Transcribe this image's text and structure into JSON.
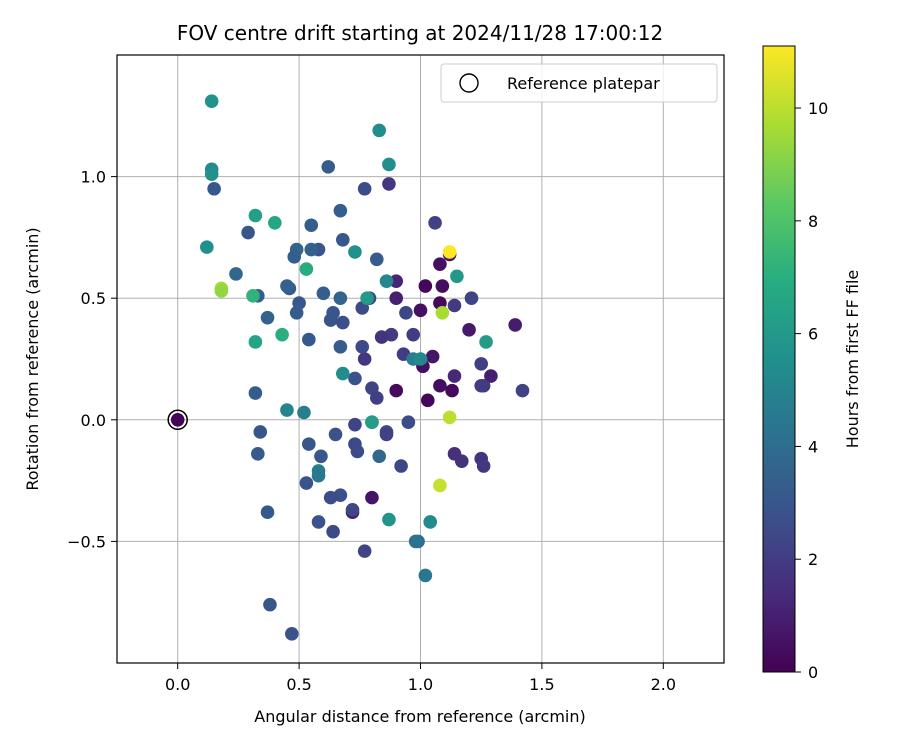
{
  "chart_data": {
    "type": "scatter",
    "title": "FOV centre drift starting at 2024/11/28 17:00:12",
    "xlabel": "Angular distance from reference (arcmin)",
    "ylabel": "Rotation from reference (arcmin)",
    "xlim": [
      -0.25,
      2.25
    ],
    "ylim": [
      -1.0,
      1.5
    ],
    "xticks": [
      0.0,
      0.5,
      1.0,
      1.5,
      2.0
    ],
    "xtick_labels": [
      "0.0",
      "0.5",
      "1.0",
      "1.5",
      "2.0"
    ],
    "yticks": [
      -0.5,
      0.0,
      0.5,
      1.0
    ],
    "ytick_labels": [
      "−0.5",
      "0.0",
      "0.5",
      "1.0"
    ],
    "grid": true,
    "legend": {
      "position": "top-right",
      "entries": [
        {
          "label": "Reference platepar",
          "marker": "open-circle"
        }
      ]
    },
    "colorbar": {
      "label": "Hours from first FF file",
      "colormap": "viridis",
      "range": [
        0,
        11.1
      ],
      "ticks": [
        0,
        2,
        4,
        6,
        8,
        10
      ],
      "tick_labels": [
        "0",
        "2",
        "4",
        "6",
        "8",
        "10"
      ]
    },
    "reference_point": {
      "x": 0.0,
      "y": 0.0
    },
    "points": [
      {
        "x": 0.0,
        "y": 0.0,
        "h": 0.1
      },
      {
        "x": 0.8,
        "y": -0.32,
        "h": 0.6
      },
      {
        "x": 0.72,
        "y": -0.38,
        "h": 0.8
      },
      {
        "x": 0.9,
        "y": 0.12,
        "h": 0.3
      },
      {
        "x": 1.01,
        "y": 0.22,
        "h": 0.5
      },
      {
        "x": 1.03,
        "y": 0.08,
        "h": 0.2
      },
      {
        "x": 1.08,
        "y": 0.14,
        "h": 0.4
      },
      {
        "x": 1.13,
        "y": 0.12,
        "h": 0.3
      },
      {
        "x": 1.05,
        "y": 0.26,
        "h": 0.7
      },
      {
        "x": 1.0,
        "y": 0.45,
        "h": 0.5
      },
      {
        "x": 1.02,
        "y": 0.55,
        "h": 0.2
      },
      {
        "x": 1.08,
        "y": 0.48,
        "h": 0.3
      },
      {
        "x": 1.09,
        "y": 0.55,
        "h": 0.4
      },
      {
        "x": 1.12,
        "y": 0.68,
        "h": 0.6
      },
      {
        "x": 1.08,
        "y": 0.64,
        "h": 0.5
      },
      {
        "x": 1.2,
        "y": 0.37,
        "h": 0.8
      },
      {
        "x": 1.39,
        "y": 0.39,
        "h": 0.9
      },
      {
        "x": 1.29,
        "y": 0.18,
        "h": 1.0
      },
      {
        "x": 0.9,
        "y": 0.57,
        "h": 1.2
      },
      {
        "x": 0.9,
        "y": 0.5,
        "h": 1.0
      },
      {
        "x": 1.14,
        "y": 0.18,
        "h": 1.3
      },
      {
        "x": 1.14,
        "y": -0.14,
        "h": 1.5
      },
      {
        "x": 1.17,
        "y": -0.17,
        "h": 1.6
      },
      {
        "x": 1.25,
        "y": -0.16,
        "h": 1.7
      },
      {
        "x": 1.26,
        "y": -0.19,
        "h": 1.8
      },
      {
        "x": 1.26,
        "y": 0.14,
        "h": 1.9
      },
      {
        "x": 1.25,
        "y": 0.14,
        "h": 2.0
      },
      {
        "x": 1.25,
        "y": 0.23,
        "h": 2.1
      },
      {
        "x": 1.42,
        "y": 0.12,
        "h": 2.2
      },
      {
        "x": 1.21,
        "y": 0.5,
        "h": 2.3
      },
      {
        "x": 1.14,
        "y": 0.47,
        "h": 1.9
      },
      {
        "x": 1.06,
        "y": 0.81,
        "h": 2.2
      },
      {
        "x": 0.87,
        "y": 0.97,
        "h": 1.8
      },
      {
        "x": 0.97,
        "y": 0.35,
        "h": 2.0
      },
      {
        "x": 0.94,
        "y": 0.44,
        "h": 2.4
      },
      {
        "x": 0.88,
        "y": 0.35,
        "h": 1.9
      },
      {
        "x": 0.84,
        "y": 0.34,
        "h": 1.7
      },
      {
        "x": 0.93,
        "y": 0.27,
        "h": 2.0
      },
      {
        "x": 0.77,
        "y": 0.25,
        "h": 1.8
      },
      {
        "x": 0.8,
        "y": 0.13,
        "h": 2.3
      },
      {
        "x": 0.82,
        "y": 0.09,
        "h": 2.1
      },
      {
        "x": 0.92,
        "y": -0.19,
        "h": 2.4
      },
      {
        "x": 0.95,
        "y": -0.01,
        "h": 2.6
      },
      {
        "x": 0.86,
        "y": -0.05,
        "h": 2.5
      },
      {
        "x": 0.86,
        "y": -0.06,
        "h": 2.2
      },
      {
        "x": 0.8,
        "y": -0.01,
        "h": 2.4
      },
      {
        "x": 0.73,
        "y": -0.02,
        "h": 2.3
      },
      {
        "x": 0.73,
        "y": -0.1,
        "h": 2.5
      },
      {
        "x": 0.74,
        "y": -0.13,
        "h": 2.6
      },
      {
        "x": 0.72,
        "y": -0.37,
        "h": 2.4
      },
      {
        "x": 0.77,
        "y": -0.54,
        "h": 2.3
      },
      {
        "x": 0.67,
        "y": -0.31,
        "h": 2.7
      },
      {
        "x": 0.63,
        "y": -0.32,
        "h": 2.6
      },
      {
        "x": 0.64,
        "y": -0.46,
        "h": 2.5
      },
      {
        "x": 0.58,
        "y": -0.42,
        "h": 2.8
      },
      {
        "x": 0.47,
        "y": -0.88,
        "h": 2.9
      },
      {
        "x": 0.38,
        "y": -0.76,
        "h": 3.0
      },
      {
        "x": 0.37,
        "y": -0.38,
        "h": 3.1
      },
      {
        "x": 0.53,
        "y": -0.26,
        "h": 2.9
      },
      {
        "x": 0.54,
        "y": -0.1,
        "h": 3.0
      },
      {
        "x": 0.59,
        "y": -0.15,
        "h": 3.1
      },
      {
        "x": 0.65,
        "y": -0.06,
        "h": 2.8
      },
      {
        "x": 0.33,
        "y": -0.14,
        "h": 3.2
      },
      {
        "x": 0.34,
        "y": -0.05,
        "h": 3.0
      },
      {
        "x": 0.32,
        "y": 0.11,
        "h": 3.3
      },
      {
        "x": 0.54,
        "y": 0.33,
        "h": 3.1
      },
      {
        "x": 0.63,
        "y": 0.41,
        "h": 2.9
      },
      {
        "x": 0.64,
        "y": 0.44,
        "h": 3.0
      },
      {
        "x": 0.67,
        "y": 0.3,
        "h": 3.2
      },
      {
        "x": 0.68,
        "y": 0.4,
        "h": 2.7
      },
      {
        "x": 0.73,
        "y": 0.17,
        "h": 2.8
      },
      {
        "x": 0.76,
        "y": 0.3,
        "h": 2.5
      },
      {
        "x": 0.76,
        "y": 0.46,
        "h": 2.6
      },
      {
        "x": 0.79,
        "y": 0.5,
        "h": 2.3
      },
      {
        "x": 0.77,
        "y": 0.95,
        "h": 2.6
      },
      {
        "x": 0.62,
        "y": 1.04,
        "h": 3.2
      },
      {
        "x": 0.67,
        "y": 0.86,
        "h": 3.4
      },
      {
        "x": 0.55,
        "y": 0.8,
        "h": 3.3
      },
      {
        "x": 0.68,
        "y": 0.74,
        "h": 3.1
      },
      {
        "x": 0.58,
        "y": 0.7,
        "h": 3.0
      },
      {
        "x": 0.55,
        "y": 0.7,
        "h": 3.5
      },
      {
        "x": 0.49,
        "y": 0.7,
        "h": 3.6
      },
      {
        "x": 0.48,
        "y": 0.67,
        "h": 3.4
      },
      {
        "x": 0.46,
        "y": 0.54,
        "h": 3.2
      },
      {
        "x": 0.45,
        "y": 0.55,
        "h": 3.5
      },
      {
        "x": 0.5,
        "y": 0.48,
        "h": 3.1
      },
      {
        "x": 0.49,
        "y": 0.44,
        "h": 3.3
      },
      {
        "x": 0.6,
        "y": 0.52,
        "h": 3.4
      },
      {
        "x": 0.67,
        "y": 0.5,
        "h": 3.6
      },
      {
        "x": 0.82,
        "y": 0.66,
        "h": 3.2
      },
      {
        "x": 0.29,
        "y": 0.77,
        "h": 3.0
      },
      {
        "x": 0.15,
        "y": 0.95,
        "h": 3.1
      },
      {
        "x": 0.24,
        "y": 0.6,
        "h": 3.7
      },
      {
        "x": 0.33,
        "y": 0.51,
        "h": 3.4
      },
      {
        "x": 0.37,
        "y": 0.42,
        "h": 3.5
      },
      {
        "x": 0.83,
        "y": -0.15,
        "h": 3.8
      },
      {
        "x": 0.99,
        "y": -0.5,
        "h": 4.0
      },
      {
        "x": 0.98,
        "y": -0.5,
        "h": 4.2
      },
      {
        "x": 1.02,
        "y": -0.64,
        "h": 4.4
      },
      {
        "x": 0.58,
        "y": -0.21,
        "h": 4.6
      },
      {
        "x": 0.58,
        "y": -0.23,
        "h": 4.5
      },
      {
        "x": 0.52,
        "y": 0.03,
        "h": 4.7
      },
      {
        "x": 0.45,
        "y": 0.04,
        "h": 5.0
      },
      {
        "x": 0.97,
        "y": 0.25,
        "h": 4.8
      },
      {
        "x": 1.0,
        "y": 0.25,
        "h": 5.2
      },
      {
        "x": 0.86,
        "y": 0.57,
        "h": 5.1
      },
      {
        "x": 0.73,
        "y": 0.69,
        "h": 5.6
      },
      {
        "x": 0.78,
        "y": 0.5,
        "h": 6.0
      },
      {
        "x": 0.68,
        "y": 0.19,
        "h": 5.4
      },
      {
        "x": 0.8,
        "y": -0.01,
        "h": 6.2
      },
      {
        "x": 0.87,
        "y": -0.41,
        "h": 5.8
      },
      {
        "x": 1.04,
        "y": -0.42,
        "h": 5.3
      },
      {
        "x": 1.15,
        "y": 0.59,
        "h": 5.9
      },
      {
        "x": 1.27,
        "y": 0.32,
        "h": 6.1
      },
      {
        "x": 0.87,
        "y": 1.05,
        "h": 5.5
      },
      {
        "x": 0.83,
        "y": 1.19,
        "h": 5.4
      },
      {
        "x": 0.14,
        "y": 1.31,
        "h": 5.7
      },
      {
        "x": 0.14,
        "y": 1.03,
        "h": 5.3
      },
      {
        "x": 0.14,
        "y": 1.01,
        "h": 5.6
      },
      {
        "x": 0.12,
        "y": 0.71,
        "h": 5.5
      },
      {
        "x": 0.32,
        "y": 0.84,
        "h": 6.3
      },
      {
        "x": 0.4,
        "y": 0.81,
        "h": 6.6
      },
      {
        "x": 0.53,
        "y": 0.62,
        "h": 6.9
      },
      {
        "x": 0.31,
        "y": 0.51,
        "h": 7.2
      },
      {
        "x": 0.32,
        "y": 0.32,
        "h": 6.5
      },
      {
        "x": 0.43,
        "y": 0.35,
        "h": 7.0
      },
      {
        "x": 0.18,
        "y": 0.54,
        "h": 9.6
      },
      {
        "x": 0.18,
        "y": 0.53,
        "h": 9.3
      },
      {
        "x": 1.09,
        "y": 0.44,
        "h": 9.7
      },
      {
        "x": 1.12,
        "y": 0.01,
        "h": 10.0
      },
      {
        "x": 1.08,
        "y": -0.27,
        "h": 10.2
      },
      {
        "x": 1.12,
        "y": 0.69,
        "h": 11.1
      }
    ]
  }
}
